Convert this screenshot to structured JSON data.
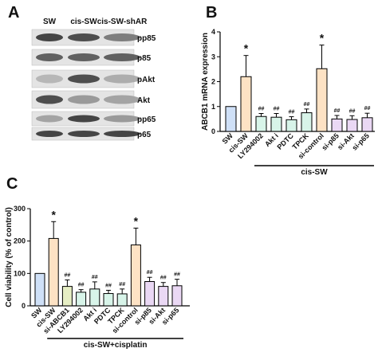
{
  "panels": {
    "a_label": "A",
    "b_label": "B",
    "c_label": "C"
  },
  "blot": {
    "lanes": [
      "SW",
      "cis-SW",
      "cis-SW-shAR"
    ],
    "proteins": [
      "pp85",
      "p85",
      "pAkt",
      "Akt",
      "pp65",
      "p65"
    ],
    "band_intensity": [
      [
        0.85,
        0.8,
        0.55
      ],
      [
        0.7,
        0.7,
        0.7
      ],
      [
        0.25,
        0.8,
        0.3
      ],
      [
        0.8,
        0.4,
        0.35
      ],
      [
        0.35,
        0.85,
        0.4
      ],
      [
        0.85,
        0.85,
        0.85
      ]
    ]
  },
  "chart_data": [
    {
      "type": "bar",
      "panel": "B",
      "title": "",
      "xlabel": "",
      "ylabel": "ABCB1 mRNA expression",
      "ylim": [
        0,
        4
      ],
      "yticks": [
        "0",
        "1",
        "2",
        "3",
        "4"
      ],
      "categories": [
        "SW",
        "cis-SW",
        "LY294002",
        "Akt i",
        "PDTC",
        "TPCK",
        "si-control",
        "si-p85",
        "si-Akt",
        "si-p65"
      ],
      "values": [
        1.0,
        2.2,
        0.6,
        0.57,
        0.47,
        0.75,
        2.52,
        0.5,
        0.48,
        0.55
      ],
      "errors": [
        0.0,
        0.85,
        0.12,
        0.15,
        0.12,
        0.15,
        0.95,
        0.14,
        0.15,
        0.18
      ],
      "annotations": [
        "",
        "*",
        "##",
        "##",
        "##",
        "##",
        "*",
        "##",
        "##",
        "##"
      ],
      "colors": [
        "#cfe0f7",
        "#fde2c4",
        "#d8f4e9",
        "#d8f4e9",
        "#d8f4e9",
        "#d8f4e9",
        "#fde2c4",
        "#ead8f4",
        "#ead8f4",
        "#ead8f4"
      ],
      "group_label": "cis-SW",
      "group_start": 2
    },
    {
      "type": "bar",
      "panel": "C",
      "title": "",
      "xlabel": "",
      "ylabel": "Cell viability (% of control)",
      "ylim": [
        0,
        300
      ],
      "yticks": [
        "0",
        "100",
        "200",
        "300"
      ],
      "categories": [
        "SW",
        "cis-SW",
        "si-ABCB1",
        "LY294002",
        "Akt i",
        "PDTC",
        "TPCK",
        "si-control",
        "si-p85",
        "si-Akt",
        "si-p65"
      ],
      "values": [
        100,
        208,
        60,
        42,
        52,
        38,
        37,
        188,
        75,
        60,
        62
      ],
      "errors": [
        0,
        52,
        20,
        8,
        22,
        10,
        15,
        52,
        13,
        12,
        20
      ],
      "annotations": [
        "",
        "*",
        "##",
        "##",
        "##",
        "##",
        "##",
        "*",
        "##",
        "##",
        "##"
      ],
      "colors": [
        "#cfe0f7",
        "#fde2c4",
        "#e6eec4",
        "#d8f4e9",
        "#d8f4e9",
        "#d8f4e9",
        "#d8f4e9",
        "#fde2c4",
        "#ead8f4",
        "#ead8f4",
        "#ead8f4"
      ],
      "group_label": "cis-SW+cisplatin",
      "group_start": 1
    }
  ]
}
